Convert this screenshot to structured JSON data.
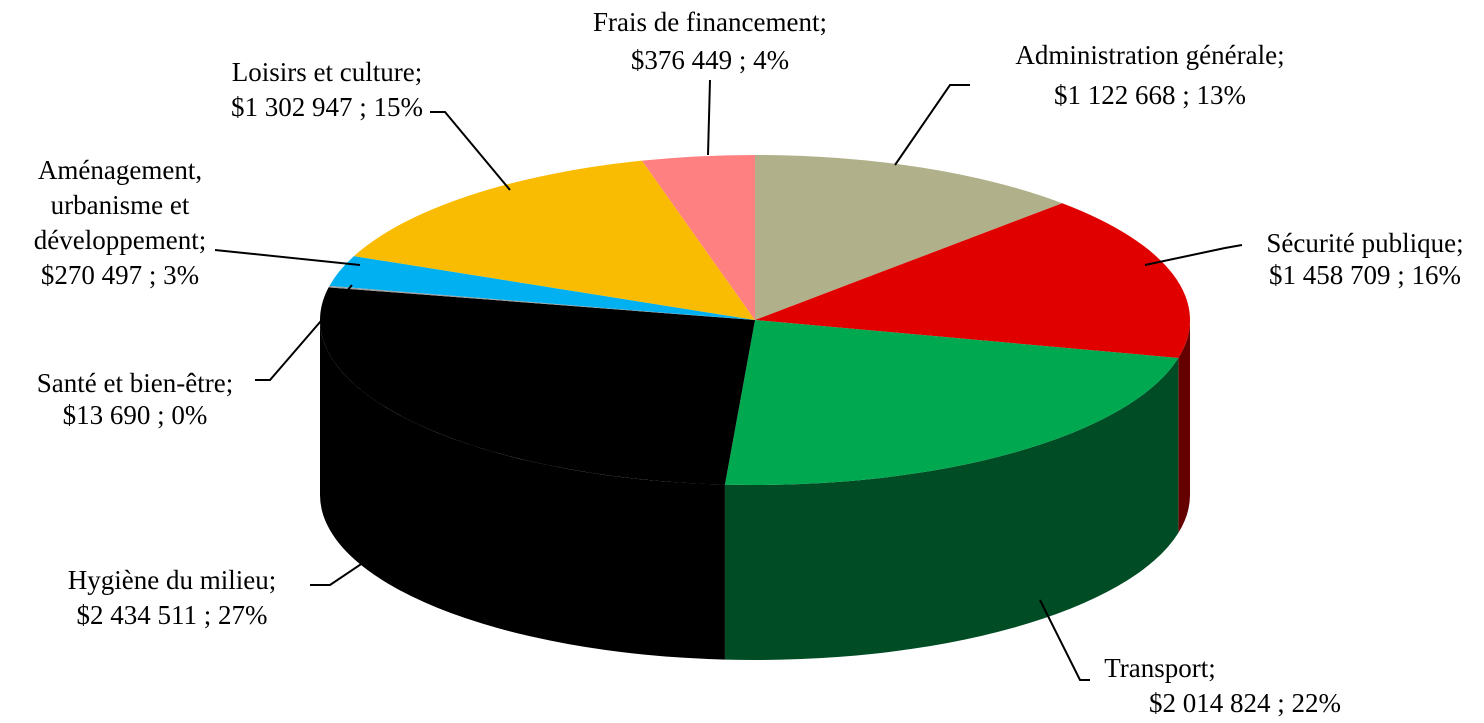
{
  "chart_data": {
    "type": "pie",
    "categories": [
      "Administration générale;",
      "Sécurité publique;",
      "Transport;",
      "Hygiène du milieu;",
      "Santé et bien-être;",
      "Aménagement, urbanisme et développement;",
      "Loisirs et culture;",
      "Frais de financement;"
    ],
    "values": [
      1122668,
      1458709,
      2014824,
      2434511,
      13690,
      270497,
      1302947,
      376449
    ],
    "value_labels": [
      "$1 122 668 ; 13%",
      "$1 458 709 ; 16%",
      "$2 014 824 ; 22%",
      "$2 434 511 ; 27%",
      "$13 690 ; 0%",
      "$270 497 ; 3%",
      "$1 302 947 ; 15%",
      "$376 449 ; 4%"
    ],
    "colors": [
      "#b0b08a",
      "#e00000",
      "#00a84f",
      "#000000",
      "#a0a0a0",
      "#00b0f0",
      "#f9bc02",
      "#ff8080"
    ]
  }
}
